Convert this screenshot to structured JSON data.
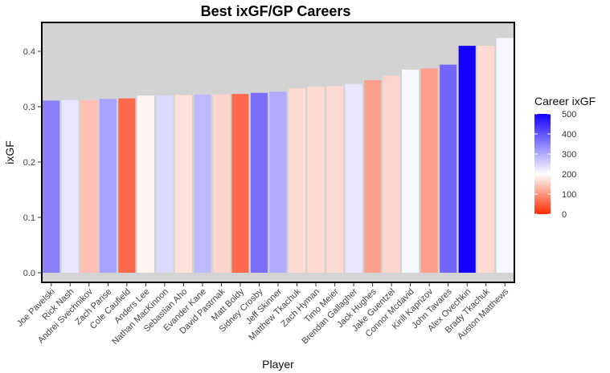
{
  "chart_data": {
    "type": "bar",
    "title": "Best ixGF/GP Careers",
    "xlabel": "Player",
    "ylabel": "ixGF",
    "ylim": [
      0,
      0.43
    ],
    "yticks": [
      "0.0",
      "0.1",
      "0.2",
      "0.3",
      "0.4"
    ],
    "ytick_values": [
      0,
      0.1,
      0.2,
      0.3,
      0.4
    ],
    "categories": [
      "Joe Pavelski",
      "Rick Nash",
      "Andrei Svechnikov",
      "Zach Parise",
      "Cole Caufield",
      "Anders Lee",
      "Nathan MacKinnon",
      "Sebastian Aho",
      "Evander Kane",
      "David Pastrnak",
      "Matt Boldy",
      "Sidney Crosby",
      "Jeff Skinner",
      "Matthew Tkachuk",
      "Zach Hyman",
      "Timo Meier",
      "Brendan Gallagher",
      "Jack Hughes",
      "Jake Guentzel",
      "Connor Mcdavid",
      "Kirill Kaprizov",
      "John Tavares",
      "Alex Ovechkin",
      "Brady Tkachuk",
      "Auston Matthews"
    ],
    "values": [
      0.311,
      0.312,
      0.312,
      0.314,
      0.315,
      0.32,
      0.32,
      0.321,
      0.322,
      0.322,
      0.323,
      0.325,
      0.327,
      0.333,
      0.336,
      0.337,
      0.341,
      0.348,
      0.356,
      0.367,
      0.369,
      0.376,
      0.41,
      0.41,
      0.424
    ],
    "fill_values": [
      350,
      230,
      140,
      310,
      60,
      190,
      245,
      170,
      280,
      160,
      60,
      370,
      300,
      165,
      165,
      165,
      230,
      110,
      160,
      210,
      110,
      380,
      500,
      165,
      210
    ],
    "legend": {
      "title": "Career ixGF",
      "ticks": [
        "0",
        "100",
        "200",
        "300",
        "400",
        "500"
      ],
      "tick_values": [
        0,
        100,
        200,
        300,
        400,
        500
      ],
      "range": [
        0,
        500
      ],
      "placement": "right"
    },
    "colors": {
      "low": "#ff2a00",
      "mid": "#ffffff",
      "high": "#1400ff",
      "panel": "#d3d3d3",
      "border": "#000000"
    },
    "grid": false
  }
}
